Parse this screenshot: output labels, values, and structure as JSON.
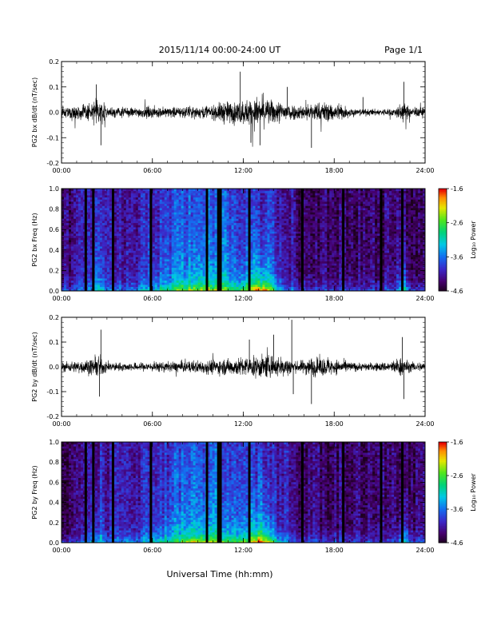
{
  "header": {
    "title": "2015/11/14  00:00-24:00 UT",
    "page": "Page 1/1"
  },
  "footer": {
    "xlabel": "Universal Time (hh:mm)"
  },
  "colorbar": {
    "label": "Log₁₀ Power",
    "ticks": [
      "-1.6",
      "-2.6",
      "-3.6",
      "-4.6"
    ],
    "range": [
      -4.6,
      -1.6
    ]
  },
  "chart_data": [
    {
      "type": "line",
      "panel": "bx-timeseries",
      "ylabel": "PG2 bx dB/dt (nT/sec)",
      "xlim": [
        0,
        24
      ],
      "ylim": [
        -0.2,
        0.2
      ],
      "xticks": [
        "00:00",
        "06:00",
        "12:00",
        "18:00",
        "24:00"
      ],
      "yticks": [
        "0.2",
        "0.1",
        "0.0",
        "-0.1",
        "-0.2"
      ],
      "activity_hours": [
        0.0,
        1.0,
        2.0,
        2.5,
        3.0,
        4.0,
        5.0,
        6.0,
        7.0,
        8.0,
        9.0,
        10.0,
        10.75,
        11.5,
        12.0,
        12.5,
        13.0,
        14.0,
        15.0,
        15.5,
        16.5,
        17.5,
        18.5,
        19.5,
        20.5,
        21.0,
        22.0,
        22.5,
        23.0,
        24.0
      ],
      "activity_amp": [
        0.03,
        0.04,
        0.06,
        0.08,
        0.035,
        0.03,
        0.03,
        0.035,
        0.03,
        0.035,
        0.035,
        0.04,
        0.07,
        0.06,
        0.075,
        0.08,
        0.09,
        0.07,
        0.06,
        0.04,
        0.055,
        0.06,
        0.045,
        0.02,
        0.02,
        0.02,
        0.025,
        0.06,
        0.03,
        0.03
      ],
      "spikes": [
        [
          2.3,
          0.11
        ],
        [
          2.6,
          -0.13
        ],
        [
          11.8,
          0.16
        ],
        [
          12.5,
          -0.12
        ],
        [
          13.1,
          -0.13
        ],
        [
          14.9,
          0.1
        ],
        [
          16.5,
          -0.14
        ],
        [
          19.9,
          0.06
        ],
        [
          22.6,
          0.12
        ]
      ]
    },
    {
      "type": "heatmap",
      "panel": "bx-spectrogram",
      "ylabel": "PG2 bx Freq (Hz)",
      "xlim": [
        0,
        24
      ],
      "ylim": [
        0,
        1
      ],
      "xticks": [
        "00:00",
        "06:00",
        "12:00",
        "18:00",
        "24:00"
      ],
      "yticks": [
        "1.0",
        "0.8",
        "0.6",
        "0.4",
        "0.2",
        "0.0"
      ],
      "zlim": [
        -4.6,
        -1.6
      ],
      "gap_hours": [
        1.6,
        2.1,
        3.4,
        5.9,
        9.6,
        10.35,
        10.5,
        12.4,
        15.9,
        18.6,
        21.1,
        22.5
      ]
    },
    {
      "type": "line",
      "panel": "by-timeseries",
      "ylabel": "PG2 by dB/dt (nT/sec)",
      "xlim": [
        0,
        24
      ],
      "ylim": [
        -0.2,
        0.2
      ],
      "xticks": [
        "00:00",
        "06:00",
        "12:00",
        "18:00",
        "24:00"
      ],
      "yticks": [
        "0.2",
        "0.1",
        "0.0",
        "-0.1",
        "-0.2"
      ],
      "activity_hours": [
        0.0,
        1.0,
        2.0,
        2.5,
        3.0,
        4.0,
        5.0,
        6.0,
        7.0,
        8.0,
        9.0,
        10.0,
        11.0,
        12.0,
        12.5,
        13.0,
        14.0,
        15.0,
        15.5,
        16.5,
        17.5,
        18.5,
        19.5,
        20.5,
        21.5,
        22.5,
        23.0,
        24.0
      ],
      "activity_amp": [
        0.03,
        0.035,
        0.05,
        0.07,
        0.03,
        0.025,
        0.025,
        0.03,
        0.03,
        0.035,
        0.04,
        0.045,
        0.05,
        0.06,
        0.06,
        0.07,
        0.065,
        0.06,
        0.03,
        0.06,
        0.055,
        0.04,
        0.025,
        0.025,
        0.03,
        0.06,
        0.03,
        0.03
      ],
      "spikes": [
        [
          2.6,
          0.15
        ],
        [
          2.5,
          -0.12
        ],
        [
          12.4,
          0.11
        ],
        [
          14.0,
          0.13
        ],
        [
          15.2,
          0.19
        ],
        [
          15.3,
          -0.11
        ],
        [
          16.5,
          -0.15
        ],
        [
          22.5,
          0.12
        ],
        [
          22.6,
          -0.13
        ]
      ]
    },
    {
      "type": "heatmap",
      "panel": "by-spectrogram",
      "ylabel": "PG2 by Freq (Hz)",
      "xlim": [
        0,
        24
      ],
      "ylim": [
        0,
        1
      ],
      "xticks": [
        "00:00",
        "06:00",
        "12:00",
        "18:00",
        "24:00"
      ],
      "yticks": [
        "1.0",
        "0.8",
        "0.6",
        "0.4",
        "0.2",
        "0.0"
      ],
      "zlim": [
        -4.6,
        -1.6
      ],
      "gap_hours": [
        1.6,
        2.1,
        3.4,
        5.9,
        9.6,
        10.35,
        10.5,
        12.4,
        15.9,
        18.6,
        21.1,
        22.5
      ]
    }
  ]
}
